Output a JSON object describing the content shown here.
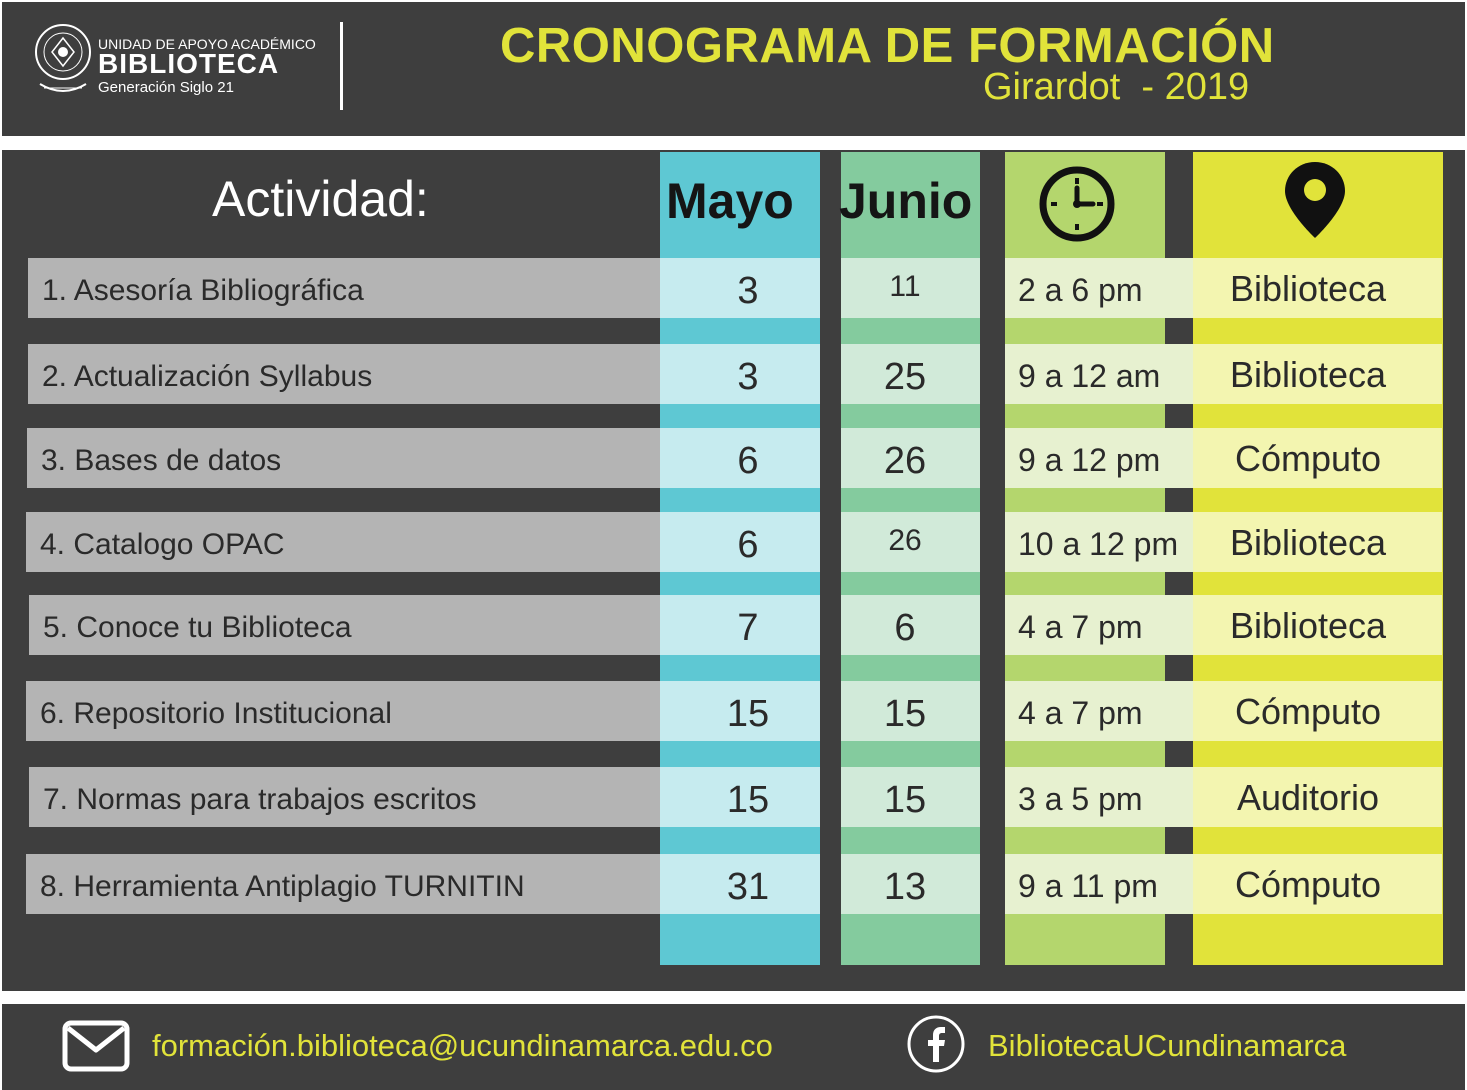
{
  "header": {
    "logo_unit": "UNIDAD DE APOYO ACADÉMICO",
    "logo_name": "BIBLIOTECA",
    "logo_sub": "Generación Siglo 21",
    "logo_seal_text": "UNIVERSIDAD DE CUNDINAMARCA",
    "title": "CRONOGRAMA DE FORMACIÓN",
    "subtitle": "Girardot  - 2019"
  },
  "colors": {
    "background_dark": "#3e3e3e",
    "accent_yellow": "#e1e33a",
    "mayo_column": "#5ec8d3",
    "junio_column": "#84cb9e",
    "hora_column": "#b4d66d",
    "lugar_column": "#e1e33a",
    "row_gray": "#b4b4b4"
  },
  "table": {
    "headers": {
      "actividad": "Actividad:",
      "mayo": "Mayo",
      "junio": "Junio",
      "hora_icon": "clock-icon",
      "lugar_icon": "location-pin-icon"
    },
    "rows": [
      {
        "actividad": "1. Asesoría Bibliográfica",
        "mayo": "3",
        "junio": "11",
        "hora": "2 a 6 pm",
        "lugar": "Biblioteca"
      },
      {
        "actividad": "2. Actualización Syllabus",
        "mayo": "3",
        "junio": "25",
        "hora": "9 a 12 am",
        "lugar": "Biblioteca"
      },
      {
        "actividad": "3. Bases de datos",
        "mayo": "6",
        "junio": "26",
        "hora": "9 a 12 pm",
        "lugar": "Cómputo"
      },
      {
        "actividad": "4. Catalogo OPAC",
        "mayo": "6",
        "junio": "26",
        "hora": "10 a 12 pm",
        "lugar": "Biblioteca"
      },
      {
        "actividad": "5. Conoce tu Biblioteca",
        "mayo": "7",
        "junio": "6",
        "hora": "4 a 7 pm",
        "lugar": "Biblioteca"
      },
      {
        "actividad": "6. Repositorio Institucional",
        "mayo": "15",
        "junio": "15",
        "hora": "4 a 7 pm",
        "lugar": "Cómputo"
      },
      {
        "actividad": "7. Normas para trabajos escritos",
        "mayo": "15",
        "junio": "15",
        "hora": "3 a 5 pm",
        "lugar": "Auditorio"
      },
      {
        "actividad": "8. Herramienta Antiplagio TURNITIN",
        "mayo": "31",
        "junio": "13",
        "hora": "9 a 11 pm",
        "lugar": "Cómputo"
      }
    ]
  },
  "footer": {
    "email": "formación.biblioteca@ucundinamarca.edu.co",
    "email_icon": "envelope-icon",
    "facebook": "BibliotecaUCundinamarca",
    "facebook_icon": "facebook-icon"
  }
}
